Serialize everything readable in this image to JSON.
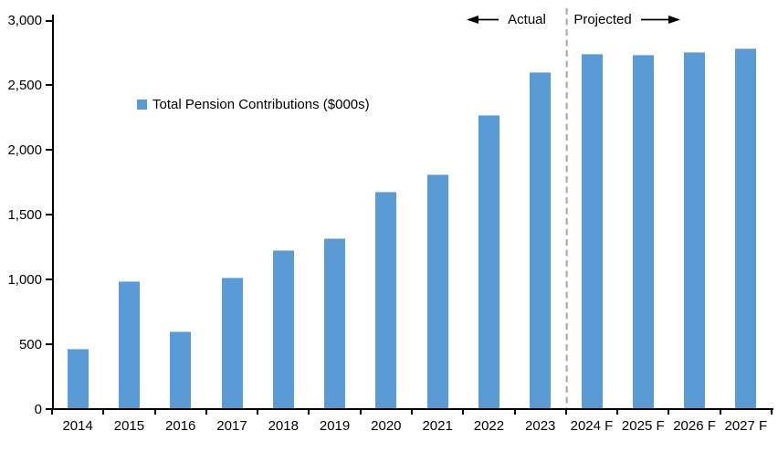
{
  "chart_data": {
    "type": "bar",
    "title": "",
    "legend_label": "Total Pension Contributions ($000s)",
    "legend_position": "inside upper-left",
    "categories": [
      "2014",
      "2015",
      "2016",
      "2017",
      "2018",
      "2019",
      "2020",
      "2021",
      "2022",
      "2023",
      "2024 F",
      "2025 F",
      "2026 F",
      "2027 F"
    ],
    "values": [
      465,
      990,
      600,
      1015,
      1225,
      1315,
      1680,
      1810,
      2270,
      2605,
      2745,
      2735,
      2760,
      2785
    ],
    "xlabel": "",
    "ylabel": "",
    "ylim": [
      0,
      3000
    ],
    "yticks": [
      0,
      500,
      1000,
      1500,
      2000,
      2500,
      3000
    ],
    "ytick_labels": [
      "0",
      "500",
      "1,000",
      "1,500",
      "2,000",
      "2,500",
      "3,000"
    ],
    "grid": false,
    "bar_color": "#5B9BD5",
    "bar_edge_color": "#9DC3E6",
    "axis_color": "#000000",
    "divider_color": "#A6A6A6",
    "annotation_color": "#000000",
    "annotations": {
      "actual_label": "Actual",
      "projected_label": "Projected",
      "divider_between": [
        "2023",
        "2024 F"
      ]
    }
  }
}
